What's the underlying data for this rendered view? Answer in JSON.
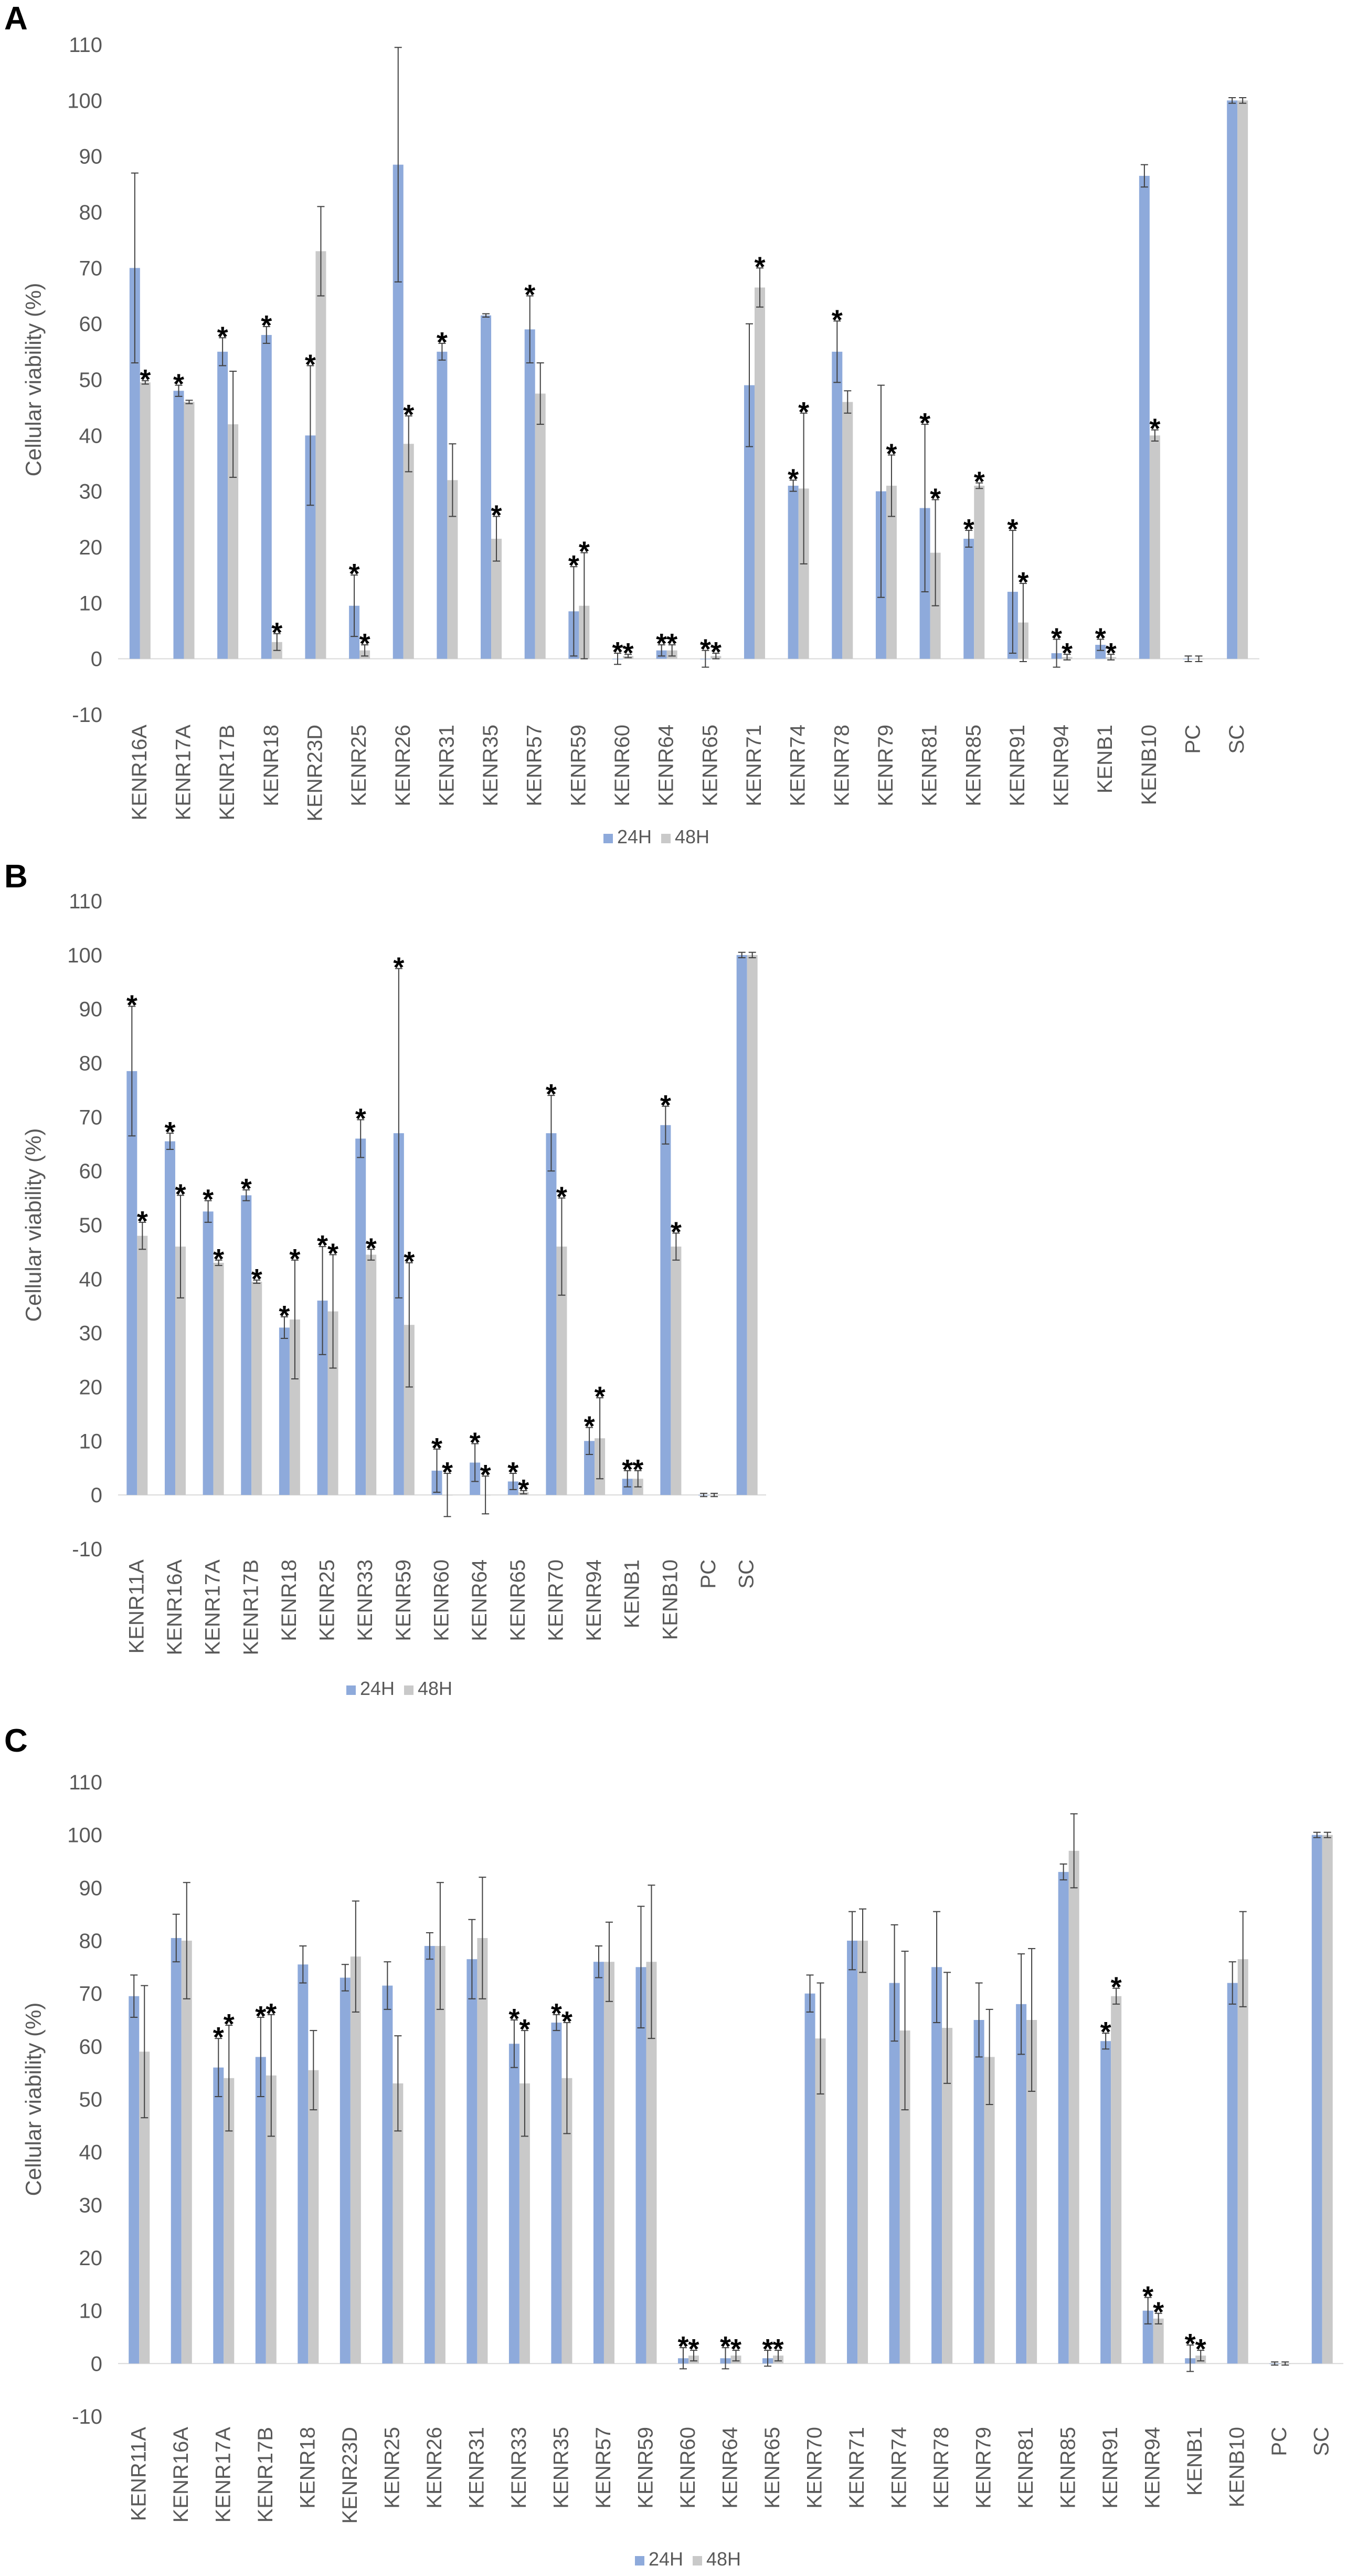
{
  "colors": {
    "h24": "#8eaadb",
    "h48": "#c9c9c9",
    "axis": "#d9d9d9",
    "text": "#595959",
    "error": "#404040"
  },
  "chart_data": [
    {
      "panel": "A",
      "type": "bar",
      "ylabel": "Cellular viability (%)",
      "ylim": [
        -10,
        110
      ],
      "yticks": [
        "-10",
        "0",
        "10",
        "20",
        "30",
        "40",
        "50",
        "60",
        "70",
        "80",
        "90",
        "100",
        "110"
      ],
      "legend": [
        "24H",
        "48H"
      ],
      "categories": [
        "KENR16A",
        "KENR17A",
        "KENR17B",
        "KENR18",
        "KENR23D",
        "KENR25",
        "KENR26",
        "KENR31",
        "KENR35",
        "KENR57",
        "KENR59",
        "KENR60",
        "KENR64",
        "KENR65",
        "KENR71",
        "KENR74",
        "KENR78",
        "KENR79",
        "KENR81",
        "KENR85",
        "KENR91",
        "KENR94",
        "KENB1",
        "KENB10",
        "PC",
        "SC"
      ],
      "series": [
        {
          "name": "24H",
          "values": [
            70,
            48,
            55,
            58,
            40,
            9.5,
            88.5,
            55,
            61.5,
            59,
            8.5,
            0,
            1.5,
            0,
            49,
            31,
            55,
            30,
            27,
            21.5,
            12,
            1,
            2.5,
            86.5,
            0,
            100
          ],
          "errors": [
            17,
            1,
            2.5,
            1.5,
            12.5,
            5.5,
            21,
            1.5,
            0.3,
            6,
            8,
            1,
            1,
            1.5,
            11,
            1,
            5.5,
            19,
            15,
            1.5,
            11,
            2.5,
            1,
            2,
            0.5,
            0.5
          ],
          "stars": [
            0,
            1,
            1,
            1,
            1,
            1,
            0,
            1,
            0,
            1,
            1,
            1,
            1,
            1,
            0,
            1,
            1,
            0,
            1,
            1,
            1,
            1,
            1,
            0,
            0,
            0
          ]
        },
        {
          "name": "48H",
          "values": [
            49.5,
            46,
            42,
            3,
            73,
            1.5,
            38.5,
            32,
            21.5,
            47.5,
            9.5,
            0.5,
            1.5,
            0.5,
            66.5,
            30.5,
            46,
            31,
            19,
            31,
            6.5,
            0.3,
            0.3,
            40,
            0,
            100
          ],
          "errors": [
            0.3,
            0.3,
            9.5,
            1.5,
            8,
            1,
            5,
            6.5,
            4,
            5.5,
            9.5,
            0.3,
            1,
            0.5,
            3.5,
            13.5,
            2,
            5.5,
            9.5,
            0.5,
            7,
            0.5,
            0.5,
            1,
            0.5,
            0.5
          ],
          "stars": [
            1,
            0,
            0,
            1,
            0,
            1,
            1,
            0,
            1,
            0,
            1,
            1,
            1,
            1,
            1,
            1,
            0,
            1,
            1,
            1,
            1,
            1,
            1,
            1,
            0,
            0
          ]
        }
      ]
    },
    {
      "panel": "B",
      "type": "bar",
      "ylabel": "Cellular viability (%)",
      "ylim": [
        -10,
        110
      ],
      "yticks": [
        "-10",
        "0",
        "10",
        "20",
        "30",
        "40",
        "50",
        "60",
        "70",
        "80",
        "90",
        "100",
        "110"
      ],
      "legend": [
        "24H",
        "48H"
      ],
      "categories": [
        "KENR11A",
        "KENR16A",
        "KENR17A",
        "KENR17B",
        "KENR18",
        "KENR25",
        "KENR33",
        "KENR59",
        "KENR60",
        "KENR64",
        "KENR65",
        "KENR70",
        "KENR94",
        "KENB1",
        "KENB10",
        "PC",
        "SC"
      ],
      "series": [
        {
          "name": "24H",
          "values": [
            78.5,
            65.5,
            52.5,
            55.5,
            31,
            36,
            66,
            67,
            4.5,
            6,
            2.5,
            67,
            10,
            3,
            68.5,
            0,
            100
          ],
          "errors": [
            12,
            1.5,
            2,
            1,
            2,
            10,
            3.5,
            30.5,
            4,
            3.5,
            1.5,
            7,
            2.5,
            1.5,
            3.5,
            0.3,
            0.5
          ],
          "stars": [
            1,
            1,
            1,
            1,
            1,
            1,
            1,
            1,
            1,
            1,
            1,
            1,
            1,
            1,
            1,
            0,
            0
          ]
        },
        {
          "name": "48H",
          "values": [
            48,
            46,
            43,
            39.5,
            32.5,
            34,
            44.5,
            31.5,
            0,
            0,
            0.5,
            46,
            10.5,
            3,
            46,
            0,
            100
          ],
          "errors": [
            2.5,
            9.5,
            0.5,
            0.3,
            11,
            10.5,
            1,
            11.5,
            4,
            3.5,
            0.3,
            9,
            7.5,
            1.5,
            2.5,
            0.3,
            0.5
          ],
          "stars": [
            1,
            1,
            1,
            1,
            1,
            1,
            1,
            1,
            1,
            1,
            1,
            1,
            1,
            1,
            1,
            0,
            0
          ]
        }
      ]
    },
    {
      "panel": "C",
      "type": "bar",
      "ylabel": "Cellular viability (%)",
      "ylim": [
        -10,
        110
      ],
      "yticks": [
        "-10",
        "0",
        "10",
        "20",
        "30",
        "40",
        "50",
        "60",
        "70",
        "80",
        "90",
        "100",
        "110"
      ],
      "legend": [
        "24H",
        "48H"
      ],
      "categories": [
        "KENR11A",
        "KENR16A",
        "KENR17A",
        "KENR17B",
        "KENR18",
        "KENR23D",
        "KENR25",
        "KENR26",
        "KENR31",
        "KENR33",
        "KENR35",
        "KENR57",
        "KENR59",
        "KENR60",
        "KENR64",
        "KENR65",
        "KENR70",
        "KENR71",
        "KENR74",
        "KENR78",
        "KENR79",
        "KENR81",
        "KENR85",
        "KENR91",
        "KENR94",
        "KENB1",
        "KENB10",
        "PC",
        "SC"
      ],
      "series": [
        {
          "name": "24H",
          "values": [
            69.5,
            80.5,
            56,
            58,
            75.5,
            73,
            71.5,
            79,
            76.5,
            60.5,
            64.5,
            76,
            75,
            1,
            1,
            1,
            70,
            80,
            72,
            75,
            65,
            68,
            93,
            61,
            10,
            1,
            72,
            0,
            100
          ],
          "errors": [
            4,
            4.5,
            5.5,
            7.5,
            3.5,
            2.5,
            4.5,
            2.5,
            7.5,
            4.5,
            1.5,
            3,
            11.5,
            2,
            2,
            1.5,
            3.5,
            5.5,
            11,
            10.5,
            7,
            9.5,
            1.5,
            1.5,
            2.5,
            2.5,
            4,
            0.3,
            0.5
          ],
          "stars": [
            0,
            0,
            1,
            1,
            0,
            0,
            0,
            0,
            0,
            1,
            1,
            0,
            0,
            1,
            1,
            1,
            0,
            0,
            0,
            0,
            0,
            0,
            0,
            1,
            1,
            1,
            0,
            0,
            0
          ]
        },
        {
          "name": "48H",
          "values": [
            59,
            80,
            54,
            54.5,
            55.5,
            77,
            53,
            79,
            80.5,
            53,
            54,
            76,
            76,
            1.5,
            1.5,
            1.5,
            61.5,
            80,
            63,
            63.5,
            58,
            65,
            97,
            69.5,
            8.5,
            1.5,
            76.5,
            0,
            100
          ],
          "errors": [
            12.5,
            11,
            10,
            11.5,
            7.5,
            10.5,
            9,
            12,
            11.5,
            10,
            10.5,
            7.5,
            14.5,
            1,
            1,
            1,
            10.5,
            6,
            15,
            10.5,
            9,
            13.5,
            7,
            1.5,
            1,
            1,
            9,
            0.3,
            0.5
          ],
          "stars": [
            0,
            0,
            1,
            1,
            0,
            0,
            0,
            0,
            0,
            1,
            1,
            0,
            0,
            1,
            1,
            1,
            0,
            0,
            0,
            0,
            0,
            0,
            0,
            1,
            1,
            1,
            0,
            0,
            0
          ]
        }
      ]
    }
  ]
}
